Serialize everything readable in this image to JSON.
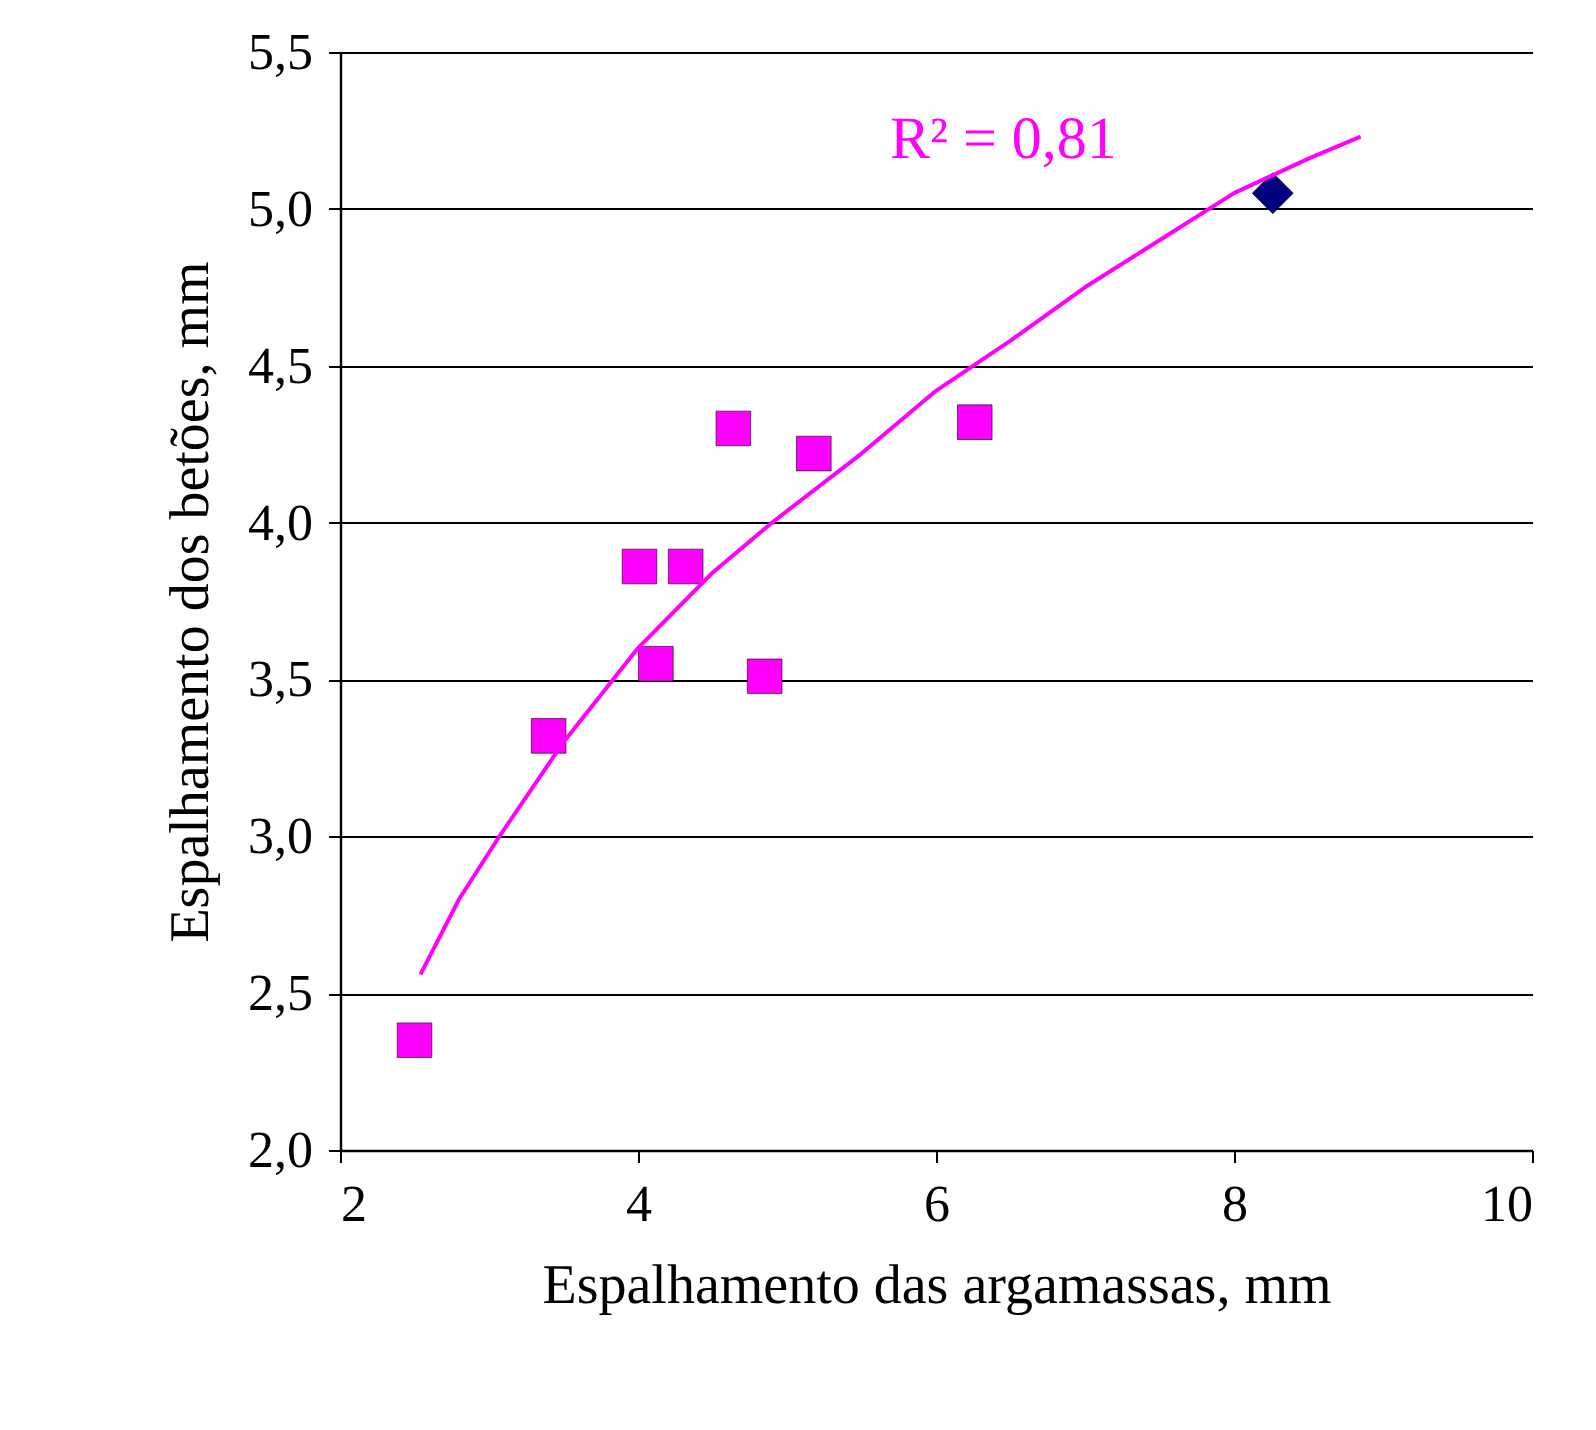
{
  "chart_data": {
    "type": "scatter",
    "xlabel": "Espalhamento das argamassas, mm",
    "ylabel": "Espalhamento dos betões, mm",
    "xlim": [
      2,
      10
    ],
    "xticks": [
      2,
      4,
      6,
      8,
      10
    ],
    "ylim": [
      2,
      5.5
    ],
    "yticks": [
      {
        "value": 2,
        "label": "2,0"
      },
      {
        "value": 2.5,
        "label": "2,5"
      },
      {
        "value": 3,
        "label": "3,0"
      },
      {
        "value": 3.5,
        "label": "3,5"
      },
      {
        "value": 4,
        "label": "4,0"
      },
      {
        "value": 4.5,
        "label": "4,5"
      },
      {
        "value": 5,
        "label": "5,0"
      },
      {
        "value": 5.5,
        "label": "5,5"
      }
    ],
    "grid": "y",
    "series": [
      {
        "marker": "square",
        "color": "#ff00ff",
        "x": [
          2.5,
          3.4,
          4.01,
          4.32,
          4.12,
          4.64,
          4.85,
          5.18,
          6.26
        ],
        "values": [
          2.35,
          3.32,
          3.86,
          3.86,
          3.55,
          4.3,
          3.51,
          4.22,
          4.32
        ]
      },
      {
        "marker": "diamond",
        "color": "#000080",
        "x": [
          8.26
        ],
        "values": [
          5.05
        ]
      },
      {
        "type": "line",
        "marker": "none",
        "color": "#ff00ff",
        "x": [
          2.54,
          2.8,
          3.07,
          3.5,
          4.0,
          4.5,
          4.9,
          5.5,
          6.0,
          6.5,
          7.0,
          7.5,
          8.0,
          8.5,
          8.85
        ],
        "values": [
          2.56,
          2.8,
          3.0,
          3.3,
          3.6,
          3.84,
          4.0,
          4.22,
          4.42,
          4.58,
          4.75,
          4.9,
          5.05,
          5.16,
          5.23
        ]
      }
    ],
    "annotations": [
      "R² = 0,81"
    ]
  }
}
